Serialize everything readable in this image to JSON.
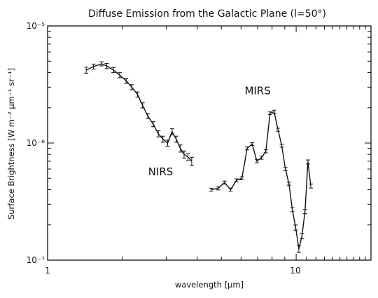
{
  "chart_data": {
    "type": "line",
    "title": "Diffuse Emission from the Galactic Plane (l=50°)",
    "xlabel": "wavelength [μm]",
    "ylabel": "Surface Brightness [W m⁻² μm⁻¹ sr⁻¹]",
    "xscale": "log",
    "yscale": "log",
    "xlim": [
      1,
      20
    ],
    "ylim": [
      1e-07,
      1e-05
    ],
    "x_tick_labels": [
      "1",
      "10"
    ],
    "y_tick_labels": [
      "10⁻⁷",
      "10⁻⁶",
      "10⁻⁵"
    ],
    "grid": false,
    "legend": "none",
    "colors": {
      "line": "#111111",
      "axes": "#111111",
      "background": "#ffffff"
    },
    "annotations": [
      {
        "text": "NIRS",
        "x": 2.85,
        "y": 5.3e-07
      },
      {
        "text": "MIRS",
        "x": 7.0,
        "y": 2.6e-06
      }
    ],
    "series": [
      {
        "label": "NIRS",
        "x": [
          1.43,
          1.53,
          1.65,
          1.73,
          1.84,
          1.95,
          2.07,
          2.18,
          2.3,
          2.41,
          2.53,
          2.66,
          2.79,
          2.91,
          3.04,
          3.17,
          3.29,
          3.42,
          3.54,
          3.67,
          3.8
        ],
        "y": [
          4.2e-06,
          4.5e-06,
          4.75e-06,
          4.55e-06,
          4.2e-06,
          3.8e-06,
          3.4e-06,
          3e-06,
          2.6e-06,
          2.1e-06,
          1.7e-06,
          1.45e-06,
          1.2e-06,
          1.08e-06,
          1e-06,
          1.25e-06,
          1.08e-06,
          9e-07,
          8e-07,
          7.6e-07,
          7e-07
        ],
        "yerr": [
          0.06,
          0.05,
          0.04,
          0.05,
          0.05,
          0.05,
          0.05,
          0.05,
          0.05,
          0.05,
          0.05,
          0.05,
          0.06,
          0.06,
          0.06,
          0.06,
          0.06,
          0.07,
          0.07,
          0.07,
          0.08
        ]
      },
      {
        "label": "MIRS",
        "x": [
          4.55,
          4.85,
          5.15,
          5.45,
          5.75,
          6.05,
          6.35,
          6.65,
          6.95,
          7.25,
          7.55,
          7.85,
          8.15,
          8.45,
          8.75,
          9.05,
          9.35,
          9.65,
          9.95,
          10.25,
          10.55,
          10.85,
          11.15,
          11.45
        ],
        "y": [
          4e-07,
          4.1e-07,
          4.6e-07,
          4e-07,
          4.8e-07,
          5e-07,
          9e-07,
          9.8e-07,
          7e-07,
          7.5e-07,
          8.5e-07,
          1.8e-06,
          1.85e-06,
          1.3e-06,
          9.5e-07,
          6e-07,
          4.5e-07,
          2.7e-07,
          1.9e-07,
          1.25e-07,
          1.6e-07,
          2.6e-07,
          6.9e-07,
          4.3e-07
        ],
        "yerr": [
          0.03,
          0.03,
          0.03,
          0.03,
          0.03,
          0.03,
          0.03,
          0.03,
          0.03,
          0.03,
          0.03,
          0.03,
          0.03,
          0.03,
          0.03,
          0.03,
          0.03,
          0.04,
          0.05,
          0.07,
          0.05,
          0.04,
          0.04,
          0.04
        ]
      }
    ]
  }
}
